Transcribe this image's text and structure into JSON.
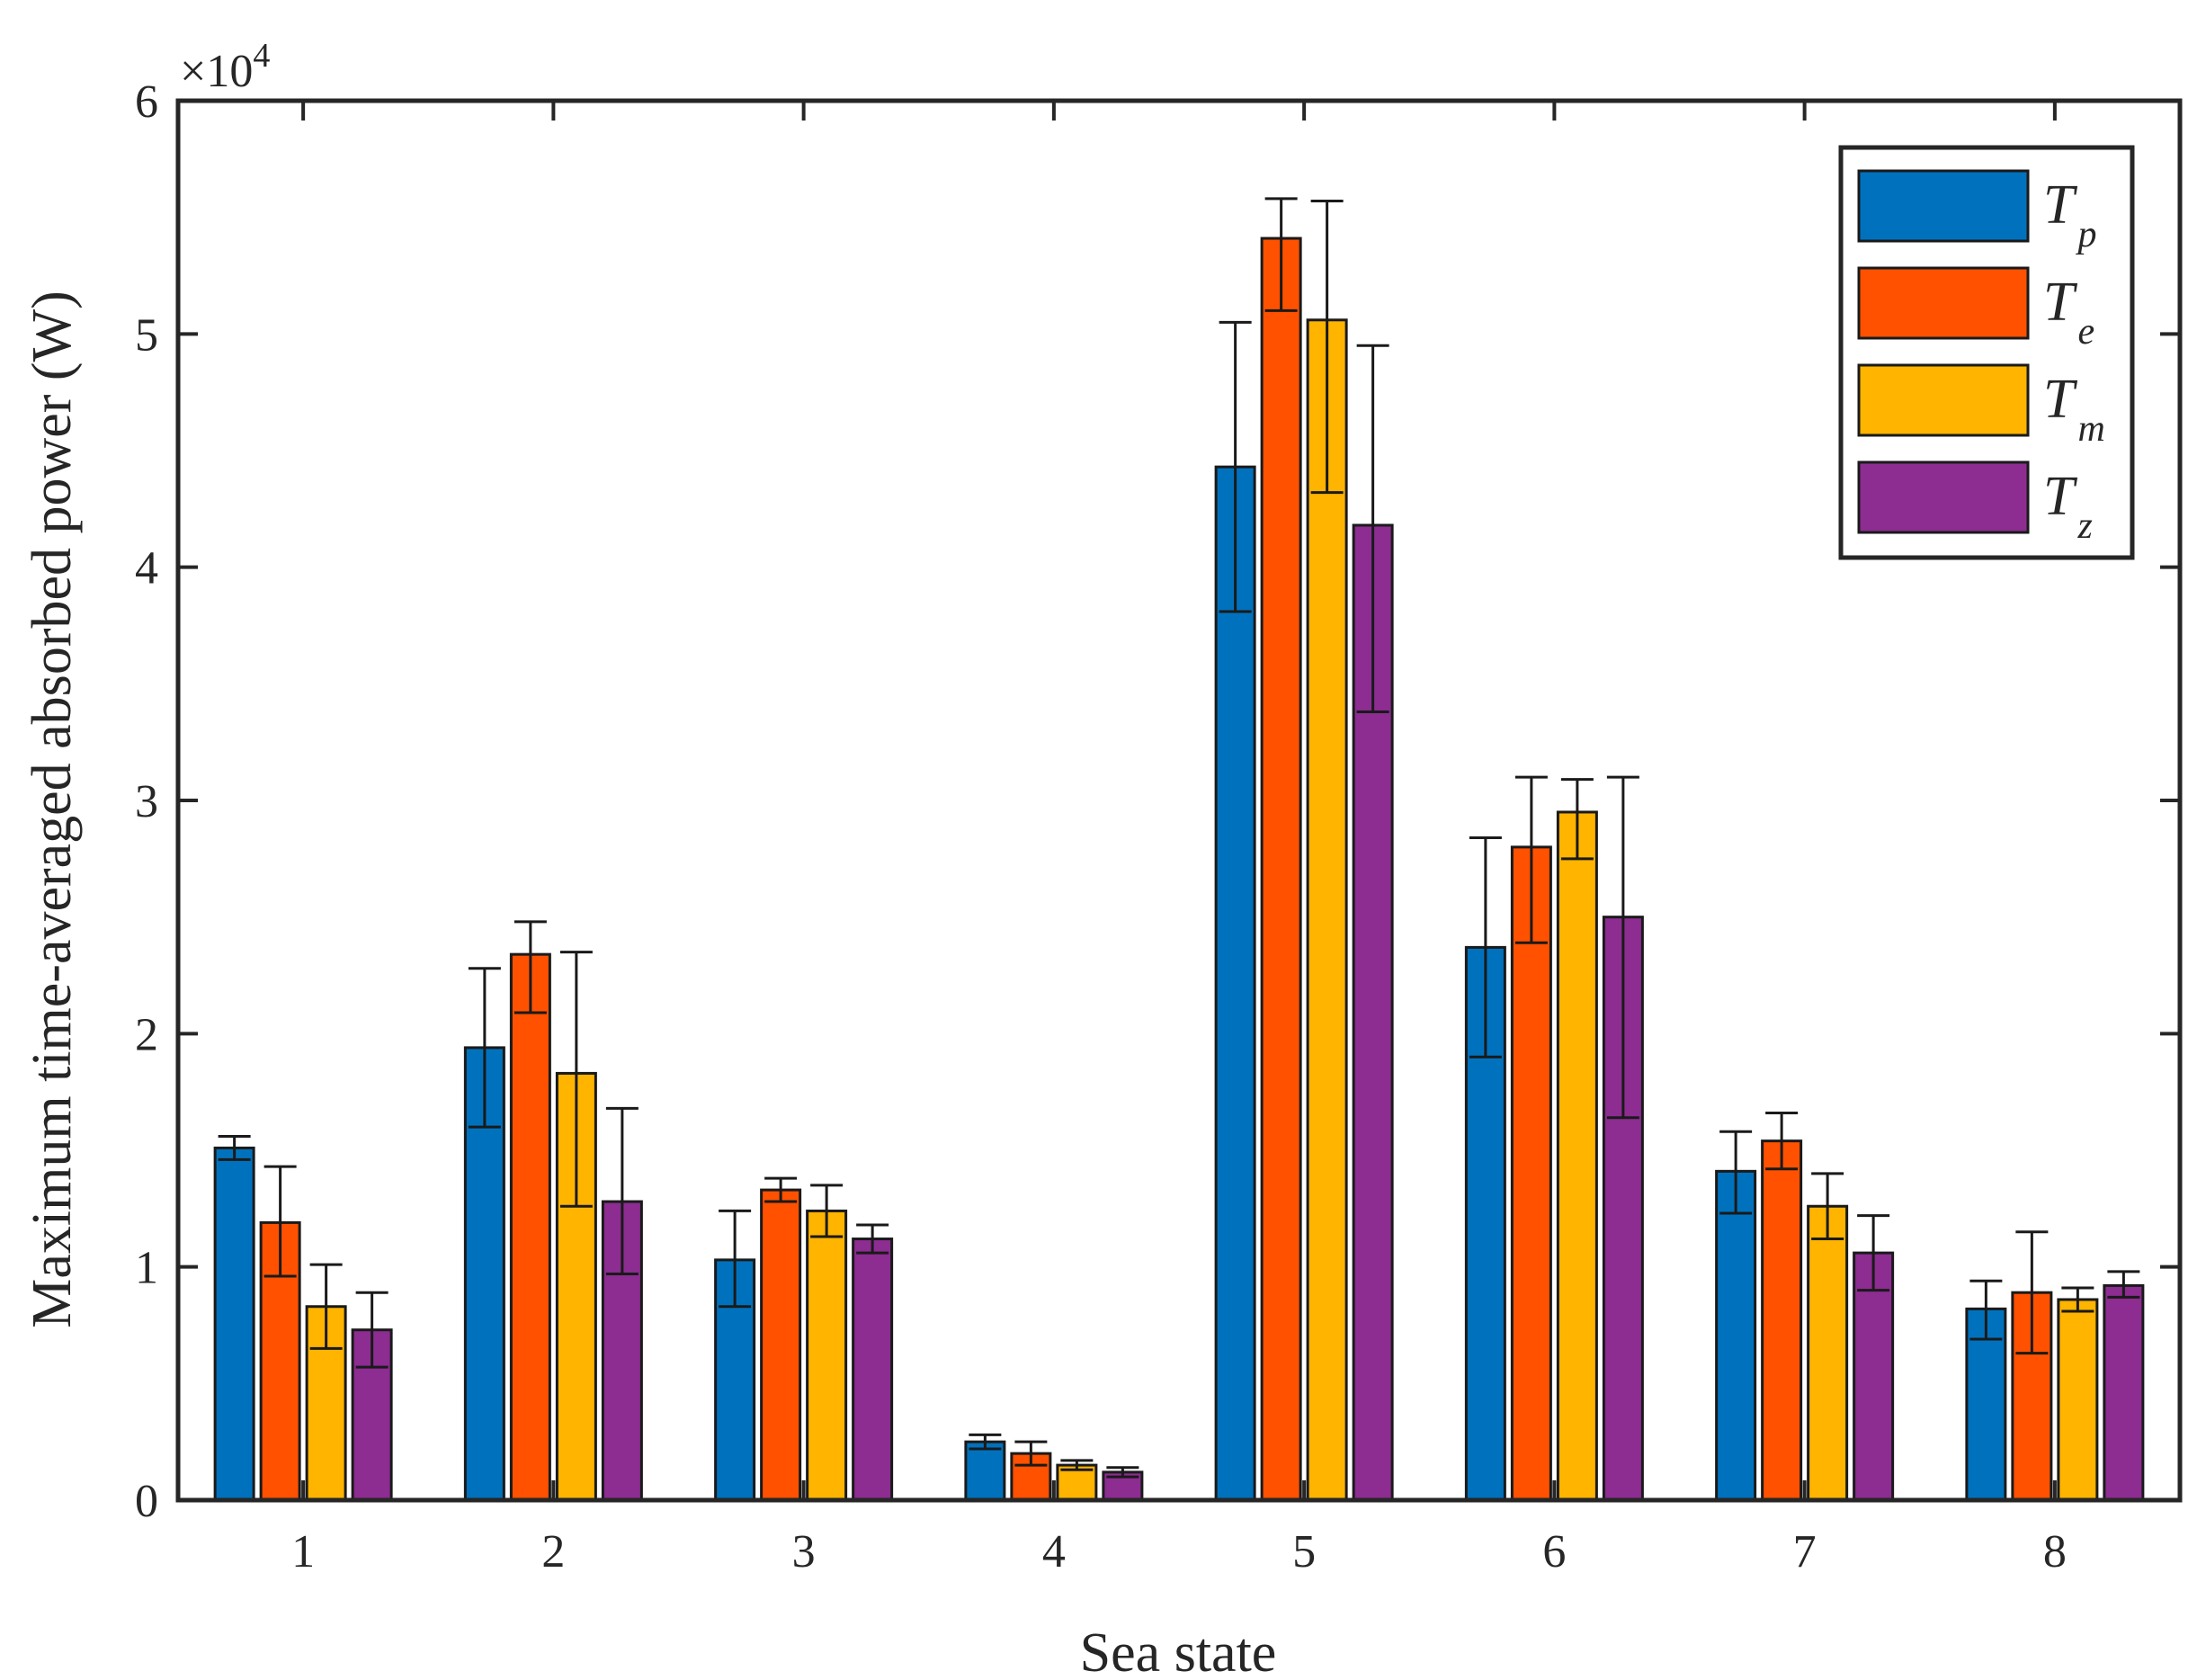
{
  "chart_data": {
    "type": "bar",
    "title": "",
    "xlabel": "Sea state",
    "ylabel": "Maximum time-averaged absorbed power (W)",
    "y_exponent_label": "×10",
    "y_exponent_power": "4",
    "ylim": [
      0,
      6
    ],
    "yticks": [
      "0",
      "1",
      "2",
      "3",
      "4",
      "5",
      "6"
    ],
    "categories": [
      "1",
      "2",
      "3",
      "4",
      "5",
      "6",
      "7",
      "8"
    ],
    "legend_position": "top-right",
    "series": [
      {
        "name": "T",
        "subscript": "p",
        "color": "#0072BD",
        "values": [
          1.51,
          1.94,
          1.03,
          0.25,
          4.43,
          2.37,
          1.41,
          0.82
        ],
        "err_low": [
          0.05,
          0.34,
          0.2,
          0.03,
          0.62,
          0.47,
          0.18,
          0.13
        ],
        "err_high": [
          0.05,
          0.34,
          0.21,
          0.03,
          0.62,
          0.47,
          0.17,
          0.12
        ]
      },
      {
        "name": "T",
        "subscript": "e",
        "color": "#FF5100",
        "values": [
          1.19,
          2.34,
          1.33,
          0.2,
          5.41,
          2.8,
          1.54,
          0.89
        ],
        "err_low": [
          0.23,
          0.25,
          0.05,
          0.05,
          0.31,
          0.41,
          0.12,
          0.26
        ],
        "err_high": [
          0.24,
          0.14,
          0.05,
          0.05,
          0.17,
          0.3,
          0.12,
          0.26
        ]
      },
      {
        "name": "T",
        "subscript": "m",
        "color": "#FFB400",
        "values": [
          0.83,
          1.83,
          1.24,
          0.15,
          5.06,
          2.95,
          1.26,
          0.86
        ],
        "err_low": [
          0.18,
          0.57,
          0.11,
          0.02,
          0.74,
          0.2,
          0.14,
          0.05
        ],
        "err_high": [
          0.18,
          0.52,
          0.11,
          0.02,
          0.51,
          0.14,
          0.14,
          0.05
        ]
      },
      {
        "name": "T",
        "subscript": "z",
        "color": "#8D2C91",
        "values": [
          0.73,
          1.28,
          1.12,
          0.12,
          4.18,
          2.5,
          1.06,
          0.92
        ],
        "err_low": [
          0.16,
          0.31,
          0.06,
          0.02,
          0.8,
          0.86,
          0.16,
          0.05
        ],
        "err_high": [
          0.16,
          0.4,
          0.06,
          0.02,
          0.77,
          0.6,
          0.16,
          0.06
        ]
      }
    ]
  }
}
